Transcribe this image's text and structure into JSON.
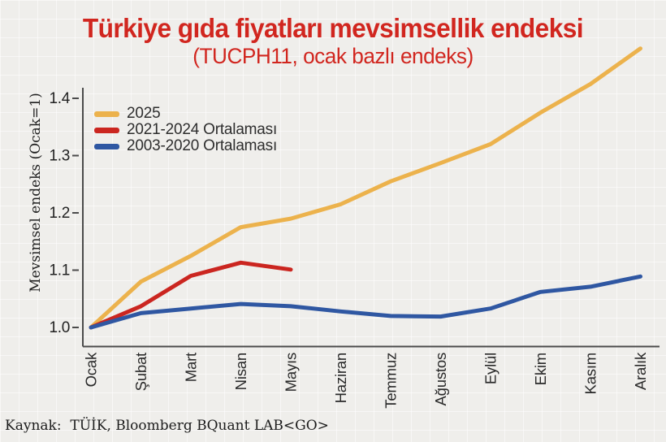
{
  "header": {
    "title": "Türkiye gıda fiyatları mevsimsellik endeksi",
    "subtitle": "(TUCPH11, ocak bazlı endeks)"
  },
  "source": "Kaynak:  TÜİK, Bloomberg BQuant LAB<GO>",
  "colors": {
    "title_red": "#d1261f",
    "axis": "#4b4b4b",
    "tick_text": "#222222",
    "background": "#efeeeb",
    "grid": "#ffffff",
    "series_orange": "#ecb24c",
    "series_red": "#cb2620",
    "series_blue": "#2f57a2"
  },
  "chart_data": {
    "type": "line",
    "title": "Türkiye gıda fiyatları mevsimsellik endeksi",
    "subtitle": "(TUCPH11, ocak bazlı endeks)",
    "xlabel": "",
    "ylabel": "Mevsimsel endeks (Ocak=1)",
    "ylim": [
      0.97,
      1.5
    ],
    "yticks": [
      1.0,
      1.1,
      1.2,
      1.3,
      1.4
    ],
    "grid": "graph-paper background grid",
    "legend_position": "top-left inside plot",
    "categories": [
      "Ocak",
      "Şubat",
      "Mart",
      "Nisan",
      "Mayıs",
      "Haziran",
      "Temmuz",
      "Ağustos",
      "Eylül",
      "Ekim",
      "Kasım",
      "Aralık"
    ],
    "series": [
      {
        "name": "2025",
        "color": "#ecb24c",
        "values": [
          1.0,
          1.08,
          1.125,
          1.175,
          1.19,
          1.215,
          1.255,
          1.287,
          1.32,
          1.375,
          1.425,
          1.487
        ]
      },
      {
        "name": "2021-2024 Ortalaması",
        "color": "#cb2620",
        "values": [
          1.0,
          1.037,
          1.09,
          1.113,
          1.101
        ]
      },
      {
        "name": "2003-2020 Ortalaması",
        "color": "#2f57a2",
        "values": [
          1.0,
          1.025,
          1.033,
          1.041,
          1.037,
          1.028,
          1.02,
          1.019,
          1.033,
          1.062,
          1.071,
          1.089
        ]
      }
    ]
  }
}
